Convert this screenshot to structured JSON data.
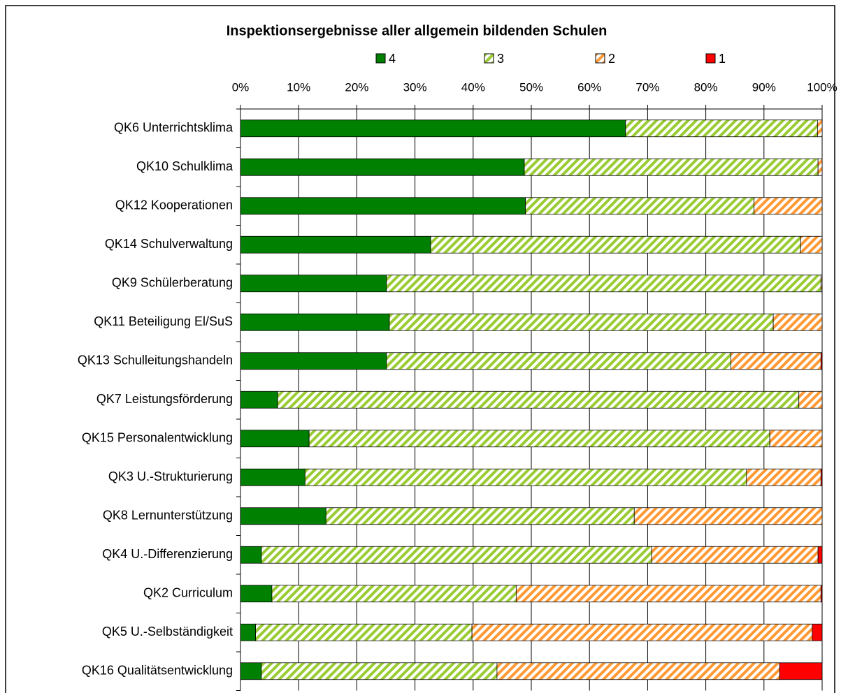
{
  "chart_data": {
    "type": "stacked_barh",
    "title": "Inspektionsergebnisse aller allgemein bildenden Schulen",
    "categories": [
      "QK6 Unterrichtsklima",
      "QK10 Schulklima",
      "QK12 Kooperationen",
      "QK14 Schulverwaltung",
      "QK9 Schülerberatung",
      "QK11 Beteiligung El/SuS",
      "QK13 Schulleitungshandeln",
      "QK7 Leistungsförderung",
      "QK15 Personalentwicklung",
      "QK3 U.-Strukturierung",
      "QK8 Lernunterstützung",
      "QK4 U.-Differenzierung",
      "QK2 Curriculum",
      "QK5 U.-Selbständigkeit",
      "QK16 Qualitätsentwicklung"
    ],
    "series": [
      {
        "name": "4",
        "color": "#008000",
        "hatch": false,
        "values": [
          66.2,
          48.8,
          49.0,
          32.7,
          25.1,
          25.6,
          25.1,
          6.4,
          11.8,
          11.1,
          14.7,
          3.6,
          5.4,
          2.6,
          3.6
        ]
      },
      {
        "name": "3",
        "color": "#99cc33",
        "hatch": true,
        "values": [
          33.0,
          50.5,
          39.3,
          63.6,
          74.7,
          66.0,
          59.2,
          89.6,
          79.2,
          75.9,
          53.0,
          67.1,
          42.0,
          37.2,
          40.5
        ]
      },
      {
        "name": "2",
        "color": "#ff9933",
        "hatch": true,
        "values": [
          0.8,
          0.7,
          11.7,
          3.7,
          0.2,
          8.4,
          15.5,
          4.0,
          9.0,
          12.8,
          32.3,
          28.6,
          52.4,
          58.5,
          48.6
        ]
      },
      {
        "name": "1",
        "color": "#ff0000",
        "hatch": false,
        "values": [
          0,
          0,
          0,
          0,
          0,
          0,
          0.2,
          0,
          0,
          0.2,
          0,
          0.7,
          0.2,
          1.7,
          7.3
        ]
      }
    ],
    "xlim": [
      0,
      100
    ],
    "xticks": [
      {
        "value": 0,
        "label": "0%"
      },
      {
        "value": 10,
        "label": "10%"
      },
      {
        "value": 20,
        "label": "20%"
      },
      {
        "value": 30,
        "label": "30%"
      },
      {
        "value": 40,
        "label": "40%"
      },
      {
        "value": 50,
        "label": "50%"
      },
      {
        "value": 60,
        "label": "60%"
      },
      {
        "value": 70,
        "label": "70%"
      },
      {
        "value": 80,
        "label": "80%"
      },
      {
        "value": 90,
        "label": "90%"
      },
      {
        "value": 100,
        "label": "100%"
      }
    ],
    "grid": true,
    "legend": "top"
  }
}
